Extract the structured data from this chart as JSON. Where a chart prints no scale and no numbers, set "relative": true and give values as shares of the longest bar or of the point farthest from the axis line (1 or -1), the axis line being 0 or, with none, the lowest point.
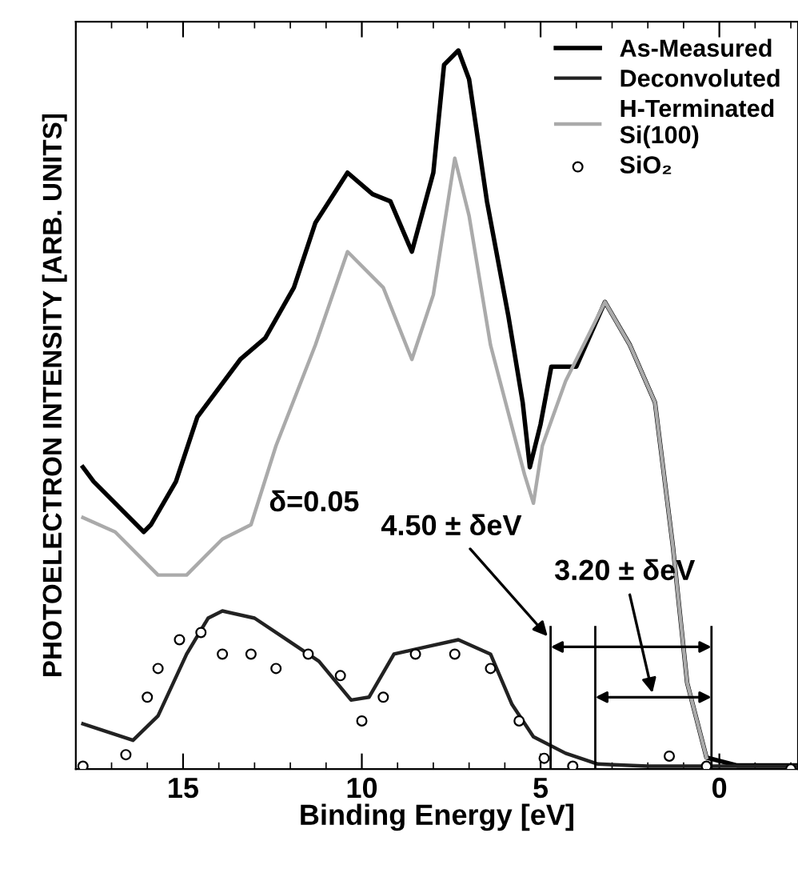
{
  "chart_data": {
    "type": "line",
    "relative": true,
    "xlabel": "Binding Energy [eV]",
    "ylabel": "PHOTOELECTRON INTENSITY [ARB. UNITS]",
    "xlim": [
      18,
      -2.2
    ],
    "xticks": [
      15,
      10,
      5,
      0
    ],
    "legend": "top right",
    "grid": false,
    "series": [
      {
        "name": "As-Measured",
        "color": "#000000",
        "x": [
          17.8,
          17.5,
          16.1,
          15.9,
          15.2,
          14.6,
          14.3,
          13.4,
          12.7,
          11.9,
          11.3,
          10.4,
          9.7,
          9.2,
          8.6,
          8.0,
          7.7,
          7.3,
          7.0,
          6.5,
          5.9,
          5.5,
          5.3,
          5.0,
          4.7,
          4.0,
          3.2,
          2.5,
          1.8,
          1.3,
          0.9,
          0.36,
          -0.5,
          -2.2
        ],
        "values": [
          0.42,
          0.4,
          0.33,
          0.34,
          0.4,
          0.49,
          0.51,
          0.57,
          0.6,
          0.67,
          0.76,
          0.83,
          0.8,
          0.79,
          0.72,
          0.83,
          0.98,
          1.0,
          0.96,
          0.79,
          0.63,
          0.51,
          0.42,
          0.48,
          0.56,
          0.56,
          0.65,
          0.59,
          0.51,
          0.31,
          0.12,
          0.016,
          0.005,
          0.005
        ]
      },
      {
        "name": "Deconvoluted",
        "color": "#222222",
        "x": [
          17.8,
          16.4,
          15.7,
          14.9,
          14.3,
          13.9,
          13.0,
          12.1,
          11.2,
          10.3,
          9.8,
          9.1,
          8.2,
          7.3,
          6.4,
          5.8,
          5.2,
          4.3,
          3.4,
          2.0,
          0.5,
          -2.2
        ],
        "values": [
          0.063,
          0.04,
          0.074,
          0.16,
          0.21,
          0.22,
          0.21,
          0.18,
          0.15,
          0.096,
          0.1,
          0.16,
          0.17,
          0.18,
          0.16,
          0.09,
          0.045,
          0.022,
          0.007,
          0.004,
          0.004,
          0.004
        ]
      },
      {
        "name": "H-Terminated\nSi(100)",
        "color": "#aaaaaa",
        "x": [
          17.8,
          16.9,
          15.7,
          14.9,
          13.9,
          13.1,
          12.4,
          11.3,
          10.4,
          9.4,
          8.6,
          8.0,
          7.4,
          7.0,
          6.4,
          5.45,
          5.2,
          4.95,
          4.3,
          3.2,
          2.5,
          1.8,
          1.3,
          0.9,
          0.36
        ],
        "values": [
          0.35,
          0.33,
          0.27,
          0.27,
          0.32,
          0.34,
          0.45,
          0.59,
          0.72,
          0.67,
          0.57,
          0.66,
          0.85,
          0.77,
          0.59,
          0.41,
          0.37,
          0.45,
          0.54,
          0.65,
          0.59,
          0.51,
          0.31,
          0.12,
          0.016
        ]
      },
      {
        "name": "SiO₂",
        "type": "scatter",
        "marker": "circle",
        "color": "#000000",
        "x": [
          17.8,
          16.6,
          16.0,
          15.7,
          15.1,
          14.5,
          13.9,
          13.1,
          12.4,
          11.5,
          10.6,
          10.0,
          9.4,
          8.5,
          7.4,
          6.4,
          5.6,
          4.9,
          4.1,
          1.4,
          0.36,
          -2.0
        ],
        "values": [
          0.004,
          0.02,
          0.1,
          0.14,
          0.18,
          0.19,
          0.16,
          0.16,
          0.14,
          0.16,
          0.13,
          0.067,
          0.1,
          0.16,
          0.16,
          0.14,
          0.067,
          0.015,
          0.004,
          0.018,
          0.004,
          0.0
        ]
      }
    ],
    "ref_lines": [
      {
        "axis": "x",
        "value": 4.72,
        "label": null
      },
      {
        "axis": "x",
        "value": 3.47,
        "label": null
      },
      {
        "axis": "x",
        "value": 0.22,
        "label": null
      }
    ],
    "annotations": [
      "δ=0.05",
      "4.50 ± δeV",
      "3.20 ± δeV"
    ]
  }
}
